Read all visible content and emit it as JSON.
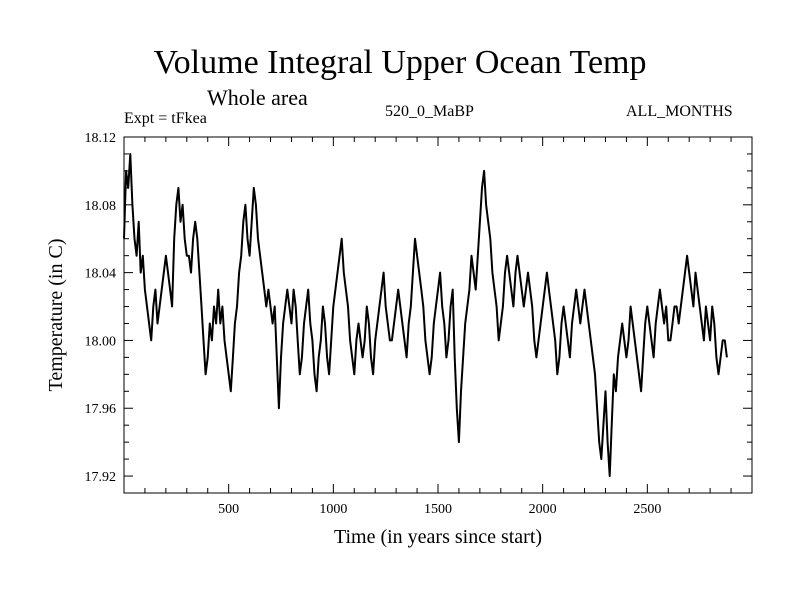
{
  "header": {
    "title": "Volume Integral Upper Ocean Temp",
    "subtitle": "Whole area",
    "left_label": "Expt = tFkea",
    "center_label": "520_0_MaBP",
    "right_label": "ALL_MONTHS"
  },
  "chart_data": {
    "type": "line",
    "title": "Volume Integral Upper Ocean Temp",
    "subtitle": "Whole area",
    "xlabel": "Time (in years since start)",
    "ylabel": "Temperature (in C)",
    "xlim": [
      0,
      3000
    ],
    "ylim": [
      17.91,
      18.12
    ],
    "x_ticks": [
      500,
      1000,
      1500,
      2000,
      2500
    ],
    "y_ticks": [
      17.92,
      17.96,
      18.0,
      18.04,
      18.08,
      18.12
    ],
    "y_tick_labels": [
      "17.92",
      "17.96",
      "18.00",
      "18.04",
      "18.08",
      "18.12"
    ],
    "grid": false,
    "series": [
      {
        "name": "",
        "x_start": 0,
        "x_step": 10,
        "values": [
          18.06,
          18.1,
          18.09,
          18.11,
          18.08,
          18.06,
          18.05,
          18.07,
          18.04,
          18.05,
          18.03,
          18.02,
          18.01,
          18.0,
          18.02,
          18.03,
          18.01,
          18.02,
          18.03,
          18.04,
          18.05,
          18.04,
          18.03,
          18.02,
          18.06,
          18.08,
          18.09,
          18.07,
          18.08,
          18.06,
          18.05,
          18.05,
          18.04,
          18.06,
          18.07,
          18.06,
          18.04,
          18.02,
          18.0,
          17.98,
          17.99,
          18.01,
          18.0,
          18.02,
          18.01,
          18.03,
          18.01,
          18.02,
          18.0,
          17.99,
          17.98,
          17.97,
          17.99,
          18.01,
          18.02,
          18.04,
          18.05,
          18.07,
          18.08,
          18.06,
          18.05,
          18.07,
          18.09,
          18.08,
          18.06,
          18.05,
          18.04,
          18.03,
          18.02,
          18.03,
          18.02,
          18.01,
          18.02,
          17.99,
          17.96,
          17.99,
          18.01,
          18.02,
          18.03,
          18.02,
          18.01,
          18.03,
          18.02,
          18.0,
          17.98,
          17.99,
          18.01,
          18.02,
          18.03,
          18.01,
          18.0,
          17.98,
          17.97,
          17.99,
          18.0,
          18.02,
          18.01,
          17.99,
          17.98,
          18.0,
          18.02,
          18.03,
          18.04,
          18.05,
          18.06,
          18.04,
          18.03,
          18.02,
          18.0,
          17.99,
          17.98,
          18.0,
          18.01,
          18.0,
          17.99,
          18.0,
          18.02,
          18.01,
          17.99,
          17.98,
          18.0,
          18.01,
          18.02,
          18.03,
          18.04,
          18.02,
          18.01,
          18.0,
          18.0,
          18.01,
          18.02,
          18.03,
          18.02,
          18.01,
          18.0,
          17.99,
          18.01,
          18.02,
          18.04,
          18.06,
          18.05,
          18.04,
          18.03,
          18.02,
          18.0,
          17.99,
          17.98,
          17.99,
          18.01,
          18.02,
          18.03,
          18.04,
          18.02,
          18.01,
          17.99,
          18.0,
          18.02,
          18.03,
          17.99,
          17.96,
          17.94,
          17.97,
          17.99,
          18.01,
          18.02,
          18.03,
          18.05,
          18.04,
          18.03,
          18.05,
          18.07,
          18.09,
          18.1,
          18.08,
          18.07,
          18.06,
          18.04,
          18.03,
          18.02,
          18.0,
          18.01,
          18.02,
          18.04,
          18.05,
          18.04,
          18.03,
          18.02,
          18.04,
          18.05,
          18.04,
          18.03,
          18.02,
          18.03,
          18.04,
          18.03,
          18.02,
          18.0,
          17.99,
          18.0,
          18.01,
          18.02,
          18.03,
          18.04,
          18.03,
          18.02,
          18.01,
          18.0,
          17.98,
          17.99,
          18.01,
          18.02,
          18.01,
          18.0,
          17.99,
          18.01,
          18.02,
          18.03,
          18.02,
          18.01,
          18.02,
          18.03,
          18.02,
          18.01,
          18.0,
          17.99,
          17.98,
          17.96,
          17.94,
          17.93,
          17.95,
          17.97,
          17.94,
          17.92,
          17.95,
          17.98,
          17.97,
          17.99,
          18.0,
          18.01,
          18.0,
          17.99,
          18.0,
          18.02,
          18.01,
          18.0,
          17.99,
          17.98,
          17.97,
          17.99,
          18.01,
          18.02,
          18.01,
          18.0,
          17.99,
          18.01,
          18.02,
          18.03,
          18.02,
          18.01,
          18.02,
          18.0,
          18.0,
          18.01,
          18.02,
          18.02,
          18.01,
          18.02,
          18.03,
          18.04,
          18.05,
          18.04,
          18.03,
          18.02,
          18.04,
          18.03,
          18.02,
          18.01,
          18.0,
          18.02,
          18.01,
          18.0,
          18.02,
          18.01,
          17.99,
          17.98,
          17.99,
          18.0,
          18.0,
          17.99
        ]
      }
    ]
  }
}
